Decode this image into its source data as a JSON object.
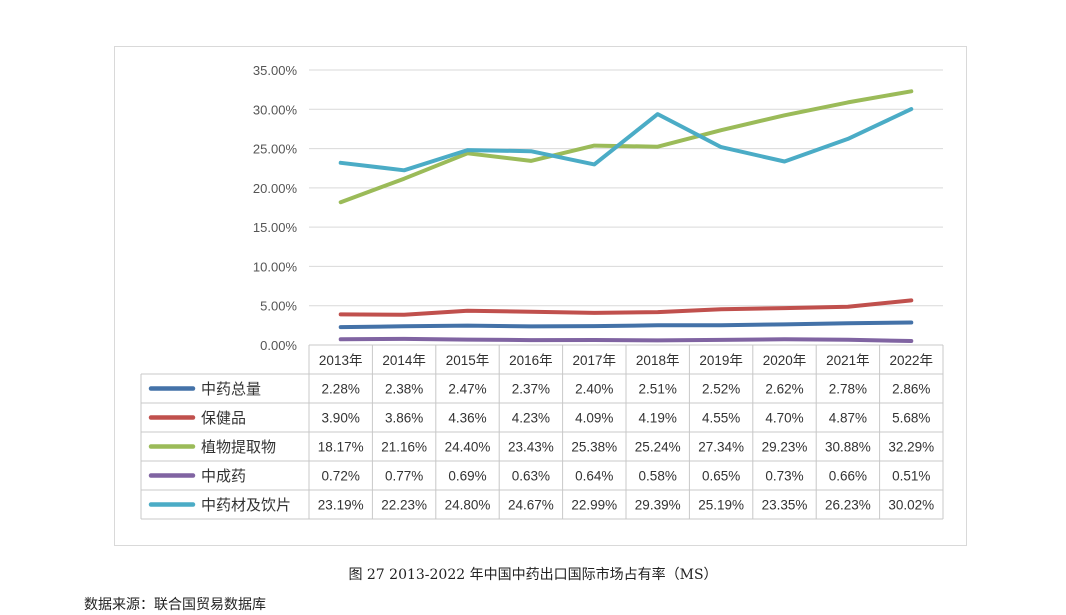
{
  "chart_data": {
    "type": "line",
    "categories": [
      "2013年",
      "2014年",
      "2015年",
      "2016年",
      "2017年",
      "2018年",
      "2019年",
      "2020年",
      "2021年",
      "2022年"
    ],
    "ylim": [
      0,
      35
    ],
    "yticks": [
      "0.00%",
      "5.00%",
      "10.00%",
      "15.00%",
      "20.00%",
      "25.00%",
      "30.00%",
      "35.00%"
    ],
    "ytick_values": [
      0,
      5,
      10,
      15,
      20,
      25,
      30,
      35
    ],
    "grid": true,
    "legend": "data table",
    "series": [
      {
        "name": "中药总量",
        "color": "#4472a8",
        "values": [
          2.28,
          2.38,
          2.47,
          2.37,
          2.4,
          2.51,
          2.52,
          2.62,
          2.78,
          2.86
        ],
        "labels": [
          "2.28%",
          "2.38%",
          "2.47%",
          "2.37%",
          "2.40%",
          "2.51%",
          "2.52%",
          "2.62%",
          "2.78%",
          "2.86%"
        ]
      },
      {
        "name": "保健品",
        "color": "#c0504d",
        "values": [
          3.9,
          3.86,
          4.36,
          4.23,
          4.09,
          4.19,
          4.55,
          4.7,
          4.87,
          5.68
        ],
        "labels": [
          "3.90%",
          "3.86%",
          "4.36%",
          "4.23%",
          "4.09%",
          "4.19%",
          "4.55%",
          "4.70%",
          "4.87%",
          "5.68%"
        ]
      },
      {
        "name": "植物提取物",
        "color": "#9bbb59",
        "values": [
          18.17,
          21.16,
          24.4,
          23.43,
          25.38,
          25.24,
          27.34,
          29.23,
          30.88,
          32.29
        ],
        "labels": [
          "18.17%",
          "21.16%",
          "24.40%",
          "23.43%",
          "25.38%",
          "25.24%",
          "27.34%",
          "29.23%",
          "30.88%",
          "32.29%"
        ]
      },
      {
        "name": "中成药",
        "color": "#8064a2",
        "values": [
          0.72,
          0.77,
          0.69,
          0.63,
          0.64,
          0.58,
          0.65,
          0.73,
          0.66,
          0.51
        ],
        "labels": [
          "0.72%",
          "0.77%",
          "0.69%",
          "0.63%",
          "0.64%",
          "0.58%",
          "0.65%",
          "0.73%",
          "0.66%",
          "0.51%"
        ]
      },
      {
        "name": "中药材及饮片",
        "color": "#4bacc6",
        "values": [
          23.19,
          22.23,
          24.8,
          24.67,
          22.99,
          29.39,
          25.19,
          23.35,
          26.23,
          30.02
        ],
        "labels": [
          "23.19%",
          "22.23%",
          "24.80%",
          "24.67%",
          "22.99%",
          "29.39%",
          "25.19%",
          "23.35%",
          "26.23%",
          "30.02%"
        ]
      }
    ]
  },
  "caption": "图 27 2013-2022 年中国中药出口国际市场占有率（MS）",
  "source": "数据来源：联合国贸易数据库"
}
